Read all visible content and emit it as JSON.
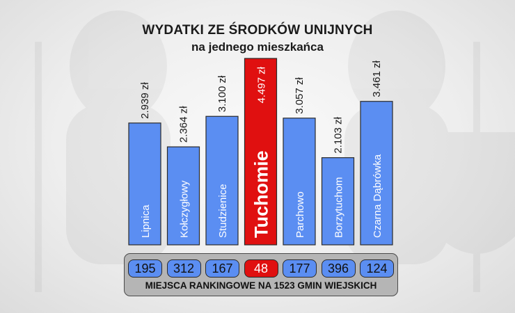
{
  "title": "WYDATKI ZE ŚRODKÓW UNIJNYCH",
  "subtitle": "na jednego mieszkańca",
  "colors": {
    "bar": "#5b8ef2",
    "highlight": "#e01010",
    "panel": "#b5b5b5"
  },
  "chart_data": {
    "type": "bar",
    "title": "WYDATKI ZE ŚRODKÓW UNIJNYCH",
    "subtitle": "na jednego mieszkańca",
    "categories": [
      "Lipnica",
      "Kołczygłowy",
      "Studzienice",
      "Tuchomie",
      "Parchowo",
      "Borzytuchom",
      "Czarna Dąbrówka"
    ],
    "values": [
      2939,
      2364,
      3100,
      4497,
      3057,
      2103,
      3461
    ],
    "value_labels": [
      "2.939 zł",
      "2.364 zł",
      "3.100 zł",
      "4.497 zł",
      "3.057 zł",
      "2.103 zł",
      "3.461 zł"
    ],
    "highlight": "Tuchomie",
    "ranks": [
      "195",
      "312",
      "167",
      "48",
      "177",
      "396",
      "124"
    ],
    "rank_caption": "MIEJSCA RANKINGOWE NA 1523 GMIN WIEJSKICH",
    "ylim": [
      0,
      4497
    ],
    "grid": false,
    "legend": "none"
  }
}
